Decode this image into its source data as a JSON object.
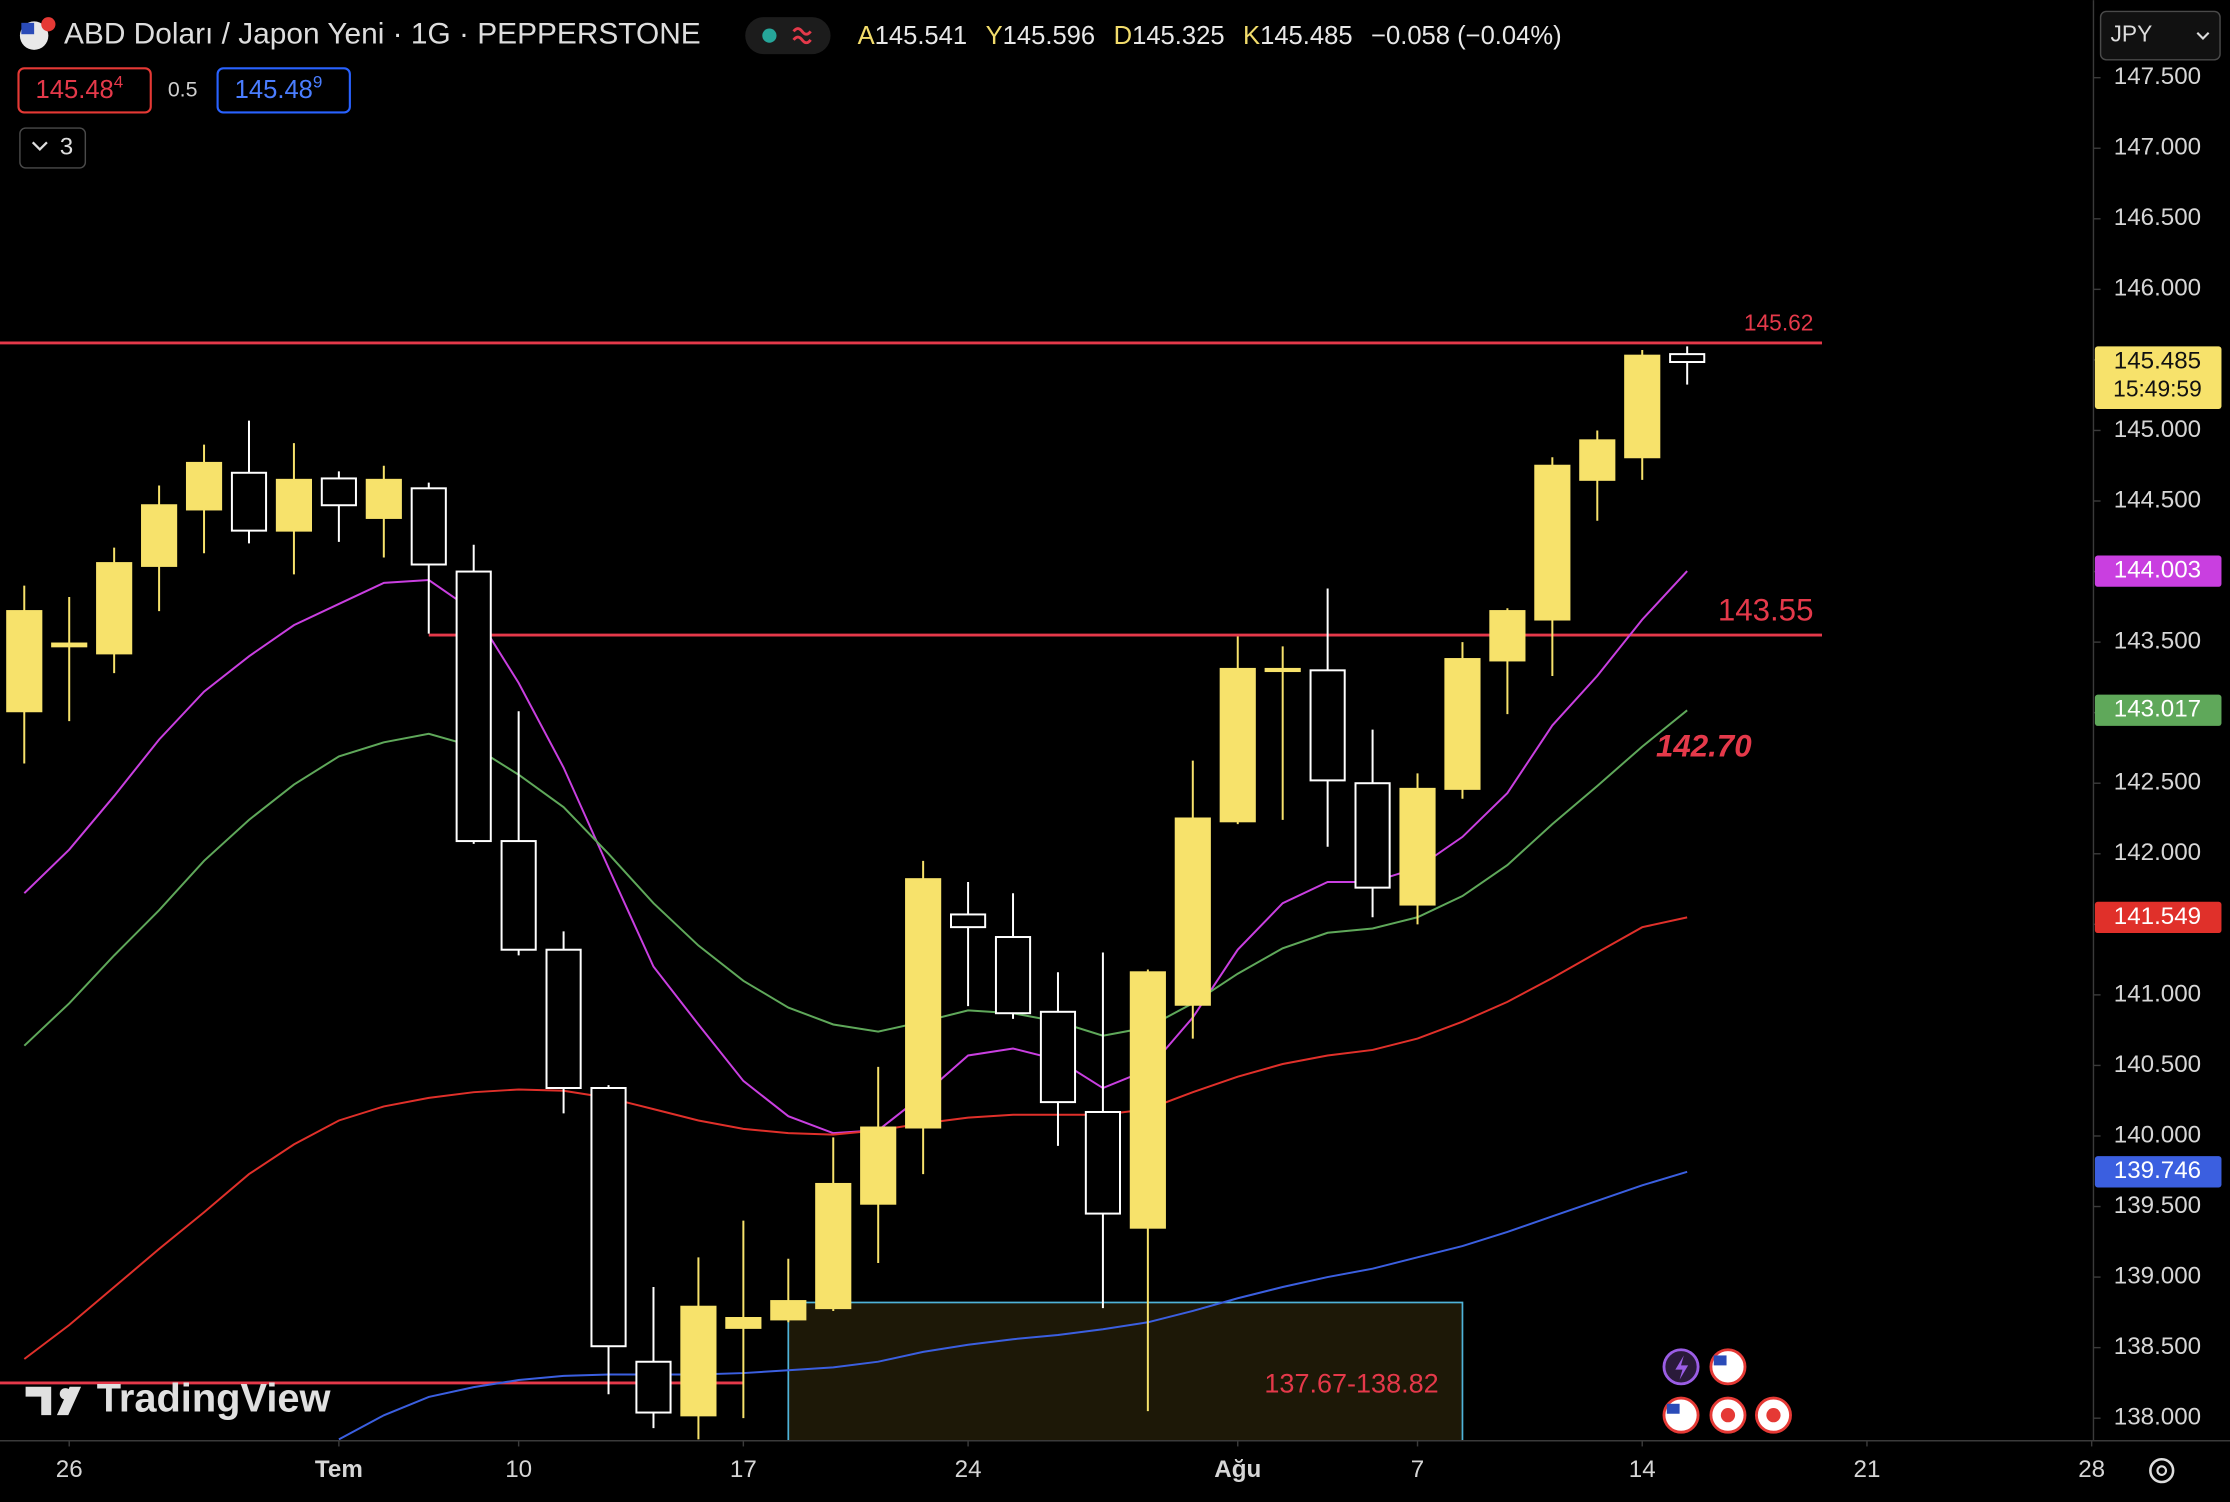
{
  "header": {
    "symbol": "ABD Doları / Japon Yeni · 1G · PEPPERSTONE",
    "ohlc_labels": [
      "A",
      "Y",
      "D",
      "K"
    ],
    "change": "−0.058 (−0.04%)",
    "sell": {
      "price": "145.48",
      "pip": "4"
    },
    "spread": "0.5",
    "buy": {
      "price": "145.48",
      "pip": "9"
    },
    "indicators_count": "3",
    "currency": "JPY"
  },
  "watermark": "TradingView",
  "chart_data": {
    "type": "candlestick",
    "x": [
      0,
      1,
      2,
      3,
      4,
      5,
      6,
      7,
      8,
      9,
      10,
      11,
      12,
      13,
      14,
      15,
      16,
      17,
      18,
      19,
      20,
      21,
      22,
      23,
      24,
      25,
      26,
      27,
      28,
      29,
      30,
      31,
      32,
      33,
      34,
      35,
      36,
      37
    ],
    "xlim": [
      -0.54,
      46.04
    ],
    "xticks": [
      {
        "value": 1,
        "label": "26"
      },
      {
        "value": 7,
        "label": "Tem"
      },
      {
        "value": 11,
        "label": "10"
      },
      {
        "value": 16,
        "label": "17"
      },
      {
        "value": 21,
        "label": "24"
      },
      {
        "value": 27,
        "label": "Ağu"
      },
      {
        "value": 31,
        "label": "7"
      },
      {
        "value": 36,
        "label": "14"
      },
      {
        "value": 41,
        "label": "21"
      },
      {
        "value": 46,
        "label": "28"
      }
    ],
    "ylim": [
      137.84,
      148.05
    ],
    "yticks": [
      {
        "value": 138.0,
        "label": "138.000"
      },
      {
        "value": 138.5,
        "label": "138.500"
      },
      {
        "value": 139.0,
        "label": "139.000"
      },
      {
        "value": 139.5,
        "label": "139.500"
      },
      {
        "value": 140.0,
        "label": "140.000"
      },
      {
        "value": 140.5,
        "label": "140.500"
      },
      {
        "value": 141.0,
        "label": "141.000"
      },
      {
        "value": 141.5,
        "label": "141.500"
      },
      {
        "value": 142.0,
        "label": "142.000"
      },
      {
        "value": 142.5,
        "label": "142.500"
      },
      {
        "value": 143.0,
        "label": "143.000"
      },
      {
        "value": 143.5,
        "label": "143.500"
      },
      {
        "value": 144.0,
        "label": "144.000"
      },
      {
        "value": 144.5,
        "label": "144.500"
      },
      {
        "value": 145.0,
        "label": "145.000"
      },
      {
        "value": 145.5,
        "label": "145.500"
      },
      {
        "value": 146.0,
        "label": "146.000"
      },
      {
        "value": 146.5,
        "label": "146.500"
      },
      {
        "value": 147.0,
        "label": "147.000"
      },
      {
        "value": 147.5,
        "label": "147.500"
      }
    ],
    "open": [
      143.01,
      143.47,
      143.42,
      144.04,
      144.44,
      144.7,
      144.29,
      144.66,
      144.38,
      144.59,
      144.0,
      142.09,
      141.32,
      140.34,
      138.4,
      138.02,
      138.64,
      138.7,
      138.78,
      139.52,
      140.06,
      141.57,
      141.41,
      140.88,
      140.17,
      139.35,
      140.93,
      142.23,
      143.3,
      143.3,
      142.5,
      141.64,
      142.46,
      143.37,
      143.66,
      144.65,
      144.81,
      145.541
    ],
    "high": [
      143.9,
      143.82,
      144.17,
      144.61,
      144.9,
      145.07,
      144.91,
      144.71,
      144.75,
      144.63,
      144.19,
      143.01,
      141.45,
      140.36,
      138.93,
      139.14,
      139.4,
      139.13,
      139.99,
      140.49,
      141.95,
      141.8,
      141.72,
      141.16,
      141.3,
      141.18,
      142.66,
      143.54,
      143.47,
      143.88,
      142.88,
      142.57,
      143.5,
      143.74,
      144.81,
      145.0,
      145.57,
      145.596
    ],
    "low": [
      142.64,
      142.94,
      143.28,
      143.72,
      144.13,
      144.2,
      143.98,
      144.21,
      144.1,
      143.56,
      142.07,
      141.28,
      140.16,
      138.17,
      137.93,
      137.85,
      138.0,
      138.68,
      138.76,
      139.1,
      139.73,
      140.92,
      140.83,
      139.93,
      138.78,
      138.05,
      140.69,
      142.21,
      142.24,
      142.05,
      141.55,
      141.5,
      142.39,
      142.99,
      143.26,
      144.36,
      144.65,
      145.325
    ],
    "close": [
      143.72,
      143.49,
      144.06,
      144.47,
      144.77,
      144.29,
      144.65,
      144.47,
      144.65,
      144.05,
      142.09,
      141.32,
      140.34,
      138.51,
      138.04,
      138.79,
      138.71,
      138.83,
      139.66,
      140.06,
      141.82,
      141.48,
      140.87,
      140.24,
      139.45,
      141.16,
      142.25,
      143.31,
      143.31,
      142.52,
      141.76,
      142.46,
      143.38,
      143.72,
      144.75,
      144.93,
      145.53,
      145.485
    ],
    "up_color": "#f7e26b",
    "down_color": "#000000",
    "down_border": "#ffffff",
    "countdown": "15:49:59",
    "series": [
      {
        "color": "#c93fe0",
        "values": [
          141.72,
          142.03,
          142.41,
          142.81,
          143.15,
          143.4,
          143.62,
          143.77,
          143.92,
          143.94,
          143.72,
          143.21,
          142.61,
          141.9,
          141.2,
          140.79,
          140.39,
          140.14,
          140.02,
          140.04,
          140.29,
          140.57,
          140.62,
          140.54,
          140.34,
          140.47,
          140.84,
          141.32,
          141.65,
          141.8,
          141.8,
          141.9,
          142.12,
          142.43,
          142.91,
          143.26,
          143.66,
          144.003
        ]
      },
      {
        "color": "#5fa85a",
        "values": [
          140.64,
          140.94,
          141.28,
          141.6,
          141.95,
          142.24,
          142.49,
          142.69,
          142.79,
          142.85,
          142.76,
          142.56,
          142.33,
          142.0,
          141.65,
          141.35,
          141.1,
          140.91,
          140.79,
          140.74,
          140.81,
          140.89,
          140.87,
          140.81,
          140.71,
          140.77,
          140.94,
          141.15,
          141.33,
          141.44,
          141.47,
          141.55,
          141.7,
          141.92,
          142.21,
          142.48,
          142.76,
          143.017
        ]
      },
      {
        "color": "#e0302a",
        "values": [
          138.42,
          138.66,
          138.93,
          139.2,
          139.46,
          139.73,
          139.94,
          140.11,
          140.21,
          140.27,
          140.31,
          140.33,
          140.32,
          140.27,
          140.19,
          140.11,
          140.05,
          140.02,
          140.01,
          140.04,
          140.09,
          140.13,
          140.15,
          140.15,
          140.15,
          140.19,
          140.31,
          140.42,
          140.51,
          140.57,
          140.61,
          140.69,
          140.81,
          140.95,
          141.12,
          141.3,
          141.48,
          141.549
        ]
      },
      {
        "color": "#3b5fe0",
        "values": [
          null,
          null,
          null,
          null,
          null,
          null,
          null,
          137.85,
          138.02,
          138.15,
          138.22,
          138.27,
          138.3,
          138.31,
          138.31,
          138.31,
          138.32,
          138.34,
          138.36,
          138.4,
          138.47,
          138.52,
          138.56,
          138.59,
          138.63,
          138.68,
          138.76,
          138.85,
          138.93,
          139.0,
          139.06,
          139.14,
          139.22,
          139.32,
          139.43,
          139.54,
          139.65,
          139.746
        ]
      }
    ],
    "levels": [
      {
        "value": 145.62,
        "x_range": [
          -1,
          40
        ],
        "color": "#e5394a",
        "labeled": true,
        "label_size": "small"
      },
      {
        "value": 143.55,
        "x_range": [
          9,
          40
        ],
        "color": "#e5394a",
        "labeled": true,
        "label_size": "large"
      },
      {
        "value": 138.25,
        "x_range": [
          -1,
          16
        ],
        "color": "#e5394a",
        "labeled": false
      }
    ],
    "zone": {
      "label": "137.67-138.82",
      "low": 137.67,
      "high": 138.82,
      "x_range": [
        17,
        32
      ],
      "fill": "#221c08",
      "stroke": "#4fb3d9"
    },
    "annotation": {
      "text": "142.70",
      "color": "#e5394a"
    }
  }
}
